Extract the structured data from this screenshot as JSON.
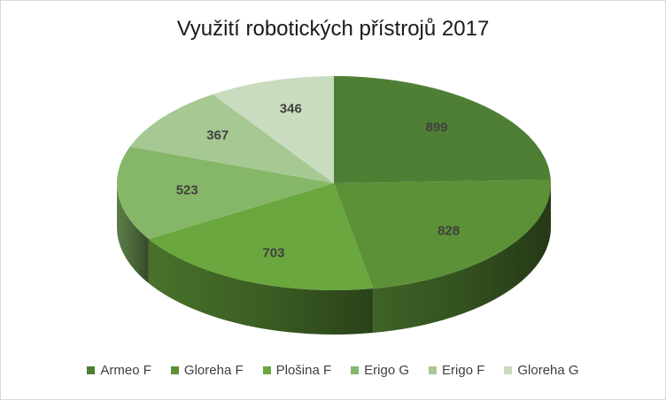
{
  "chart_data": {
    "type": "pie",
    "title": "Využití robotických přístrojů 2017",
    "categories": [
      "Armeo F",
      "Gloreha F",
      "Plošina F",
      "Erigo G",
      "Erigo F",
      "Gloreha G"
    ],
    "values": [
      899,
      828,
      703,
      523,
      367,
      346
    ],
    "colors": [
      "#4e7f35",
      "#5c9137",
      "#6aa73e",
      "#86b768",
      "#a6c994",
      "#c9dcbf"
    ],
    "legend_position": "bottom",
    "data_labels": true,
    "style": "3d"
  }
}
